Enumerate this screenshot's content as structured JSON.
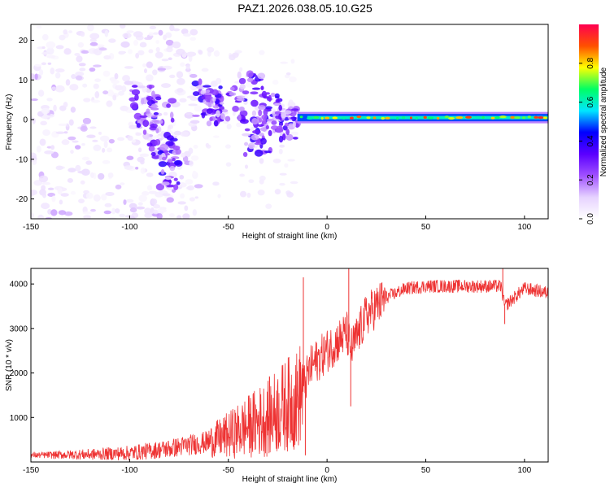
{
  "figure": {
    "title": "PAZ1.2026.038.05.10.G25"
  },
  "chart_data": [
    {
      "type": "heatmap",
      "panel": "spectrogram",
      "xlabel": "Height of straight line (km)",
      "ylabel": "Frequency (Hz)",
      "xlim": [
        -150,
        112
      ],
      "ylim": [
        -25,
        24
      ],
      "xticks": [
        -150,
        -100,
        -50,
        0,
        50,
        100
      ],
      "xtick_labels": [
        "-150",
        "-100",
        "-50",
        "0",
        "50",
        "100"
      ],
      "yticks": [
        -20,
        -10,
        0,
        10,
        20
      ],
      "ytick_labels": [
        "-20",
        "-10",
        "0",
        "10",
        "20"
      ],
      "colorbar": {
        "label": "Normalized spectral amplitude",
        "range": [
          0,
          1
        ],
        "ticks": [
          0.0,
          0.2,
          0.4,
          0.6,
          0.8
        ],
        "tick_labels": [
          "0.0",
          "0.2",
          "0.4",
          "0.6",
          "0.8"
        ],
        "colors": [
          "#ffffff",
          "#e6d2ff",
          "#a050ff",
          "#5a00ff",
          "#0000ff",
          "#00e6ff",
          "#00ff64",
          "#ffff00",
          "#ff5000",
          "#ff0050"
        ]
      },
      "features": [
        {
          "name": "scattered noise",
          "x_range": [
            -150,
            -65
          ],
          "freq_range": [
            -25,
            24
          ],
          "amplitude": "low (0.0-0.15)"
        },
        {
          "name": "transition blobs",
          "x_range": [
            -70,
            -15
          ],
          "freq_range": [
            -15,
            10
          ],
          "amplitude": "0.1-0.4"
        },
        {
          "name": "carrier line",
          "x_range": [
            -15,
            112
          ],
          "freq_hz": 0.5,
          "amplitude": "0.3-0.9"
        }
      ]
    },
    {
      "type": "line",
      "panel": "snr",
      "xlabel": "Height of straight line (km)",
      "ylabel": "SNR (10 * v/v)",
      "xlim": [
        -150,
        112
      ],
      "ylim": [
        0,
        4350
      ],
      "xticks": [
        -150,
        -100,
        -50,
        0,
        50,
        100
      ],
      "xtick_labels": [
        "-150",
        "-100",
        "-50",
        "0",
        "50",
        "100"
      ],
      "yticks": [
        1000,
        2000,
        3000,
        4000
      ],
      "ytick_labels": [
        "1000",
        "2000",
        "3000",
        "4000"
      ],
      "line_color": "#ee3333",
      "series": [
        {
          "name": "SNR",
          "x": [
            -150,
            -120,
            -100,
            -90,
            -80,
            -70,
            -60,
            -50,
            -40,
            -30,
            -20,
            -15,
            -12,
            -8,
            0,
            5,
            10,
            12,
            20,
            30,
            40,
            50,
            70,
            88,
            90,
            100,
            112
          ],
          "y": [
            150,
            170,
            200,
            250,
            300,
            380,
            450,
            600,
            800,
            1000,
            1300,
            1400,
            1700,
            2150,
            2500,
            2700,
            2900,
            2500,
            3300,
            3700,
            3900,
            3950,
            3950,
            3950,
            3500,
            3900,
            3800
          ]
        }
      ],
      "spikes": [
        {
          "x": -12,
          "y": 4150
        },
        {
          "x": -11,
          "y": 150
        },
        {
          "x": 11,
          "y": 4400
        },
        {
          "x": 12,
          "y": 1250
        },
        {
          "x": 89,
          "y": 4350
        },
        {
          "x": 90,
          "y": 3100
        }
      ]
    }
  ]
}
